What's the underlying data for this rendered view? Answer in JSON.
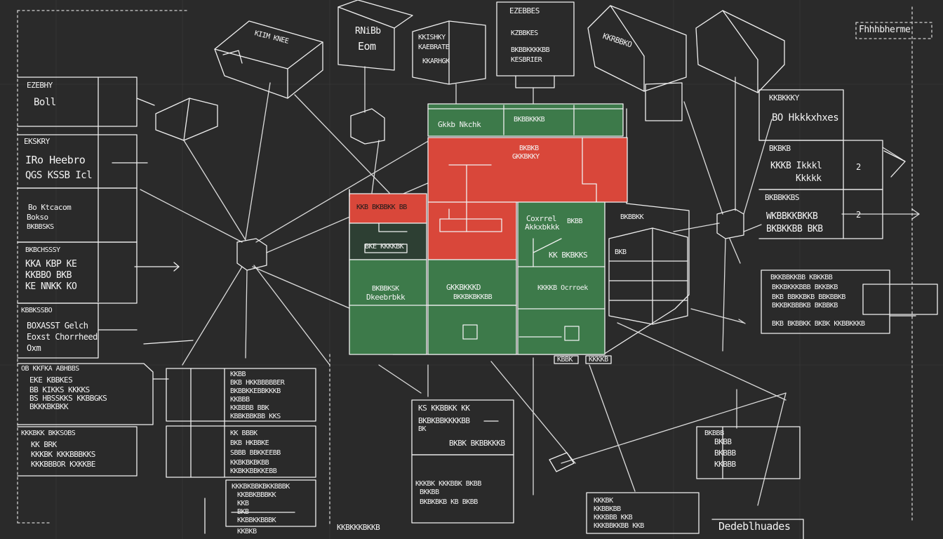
{
  "colors": {
    "board": "#2a2a2a",
    "chalk": "#f2f2f2",
    "red_block": "#d9473a",
    "green_block": "#3d7a4a",
    "dark_block": "#2d3f33"
  },
  "corner": {
    "top_right": "Fhhhbherme",
    "bottom_right": "Dedeblhuades"
  },
  "top_cubes": {
    "cube_1": "KIIM KNEE",
    "cube_2_line1": "RNiBb",
    "cube_2_line2": "Eom",
    "cube_3_line1": "KKISHKY",
    "cube_3_line2": "KAEBRATE",
    "cube_3_line3": "KKARHGK",
    "top_box_line1": "EZEBBES",
    "top_box_line2": "KZBBKES",
    "top_box_line3": "BKBBKKKKBB",
    "top_box_line4": "KESBRIER",
    "cube_5": "KKRBBKO",
    "cube_6": ""
  },
  "left_panel": {
    "r1": "EZEBHY",
    "r1b": "Boll",
    "r2": "EKSKRY",
    "r2b": "IRo Heebro",
    "r2c": "QGS KSSB Icl",
    "r3": "Bo Ktcacom",
    "r3b": "Bokso",
    "r3c": "BKBBSKS",
    "r4": "BKBCHSSSY",
    "r4b": "KKA KBP KE",
    "r4c": "KKBBO BKB",
    "r4d": "KE NNKK KO",
    "r5": "KBBKSSBO",
    "r5b": "BOXASST Gelch",
    "r5c": "Eoxst Chorrheed",
    "r5d": "Oxm"
  },
  "lower_left": {
    "a1": "OB KKFKA ABHBBS",
    "a2": "EKE KBBKES",
    "a3": "BB KIKKS KKKKS",
    "a4": "BS HBSSKKS KKBBGKS",
    "a5": "BKKKBKBKK",
    "b1": "KKKBKK BKKSOBS",
    "b2": "KK BRK",
    "b3": "KKKBK KKKBBBKKS",
    "b4": "KKKBBBOR KXKKBE"
  },
  "center_tables": {
    "t1_l1": "KKBB",
    "t1_l2": "BKB HKKBBBBBER",
    "t1_l3": "BKBBKKEBBKKKB",
    "t1_l4": "KKBBB",
    "t1_l5": "KKBBBB BBK",
    "t1_l6": "KBBKBBKBB KKS",
    "t2_l1": "KK BBBK",
    "t2_l2": "BKB HKBBKE",
    "t2_l3": "SBBB BBKKEEBB",
    "t2_l4": "KKBKBKBKBB",
    "t2_l5": "KKBKKBBKKEBB",
    "t3_l1": "KKKBKBBKBKKBBBK",
    "t3_l2": "KKBBKBBBKK",
    "t3_l3": "KKB",
    "t3_l4": "BKB",
    "t3_l5": "KKBBKKBBBK",
    "t3_l6": "KKBKB"
  },
  "center_block": {
    "green_top": "Gkkb Nkchk",
    "green_top_right": "BKBBKKKB",
    "red_l1": "BKBKB",
    "red_l2": "GKKBKKY",
    "small_red": "KKB BKBBKK BB",
    "dark_label": "BKE KKKKBK",
    "green_l1": "BKBBKSK",
    "green_l2": "Dkeebrbkk",
    "green_c1": "GKKBKKKD",
    "green_c2": "BKKBKBKKBB",
    "green_r1": "Coxrrel",
    "green_r2": "Akkxbkkk",
    "green_r3": "BKBB",
    "green_r4": "KK BKBKKS",
    "green_r5": "KKKKB Ocrroek",
    "cyl_top": "BKBBKK",
    "cyl_label": "BKB",
    "under_tag1": "KBBK",
    "under_tag2": "KKKKB"
  },
  "center_lower": {
    "l1": "KS KKBBKK KK",
    "l2": "BKBKBBKKKKBB",
    "l3": "BK",
    "l4": "BKBK BKBBKKKB",
    "l5": "KKKBK KKKBBK BKBB",
    "l6": "BKKBB",
    "l7": "BKBKBKB KB BKBB",
    "bottom_box1": "KKKBK",
    "bottom_box2": "KKBBKBB",
    "bottom_box3": "KKKBBB KKB",
    "bottom_box4": "KKKBBKKBB KKB"
  },
  "right_panel": {
    "p1": "KKBKKKY",
    "p1b": "BO Hkkkxhxes",
    "p2": "BKBKB",
    "p2b": "KKKB Ikkkl",
    "p2c": "Kkkkk",
    "p2num": "2",
    "p3": "BKBBKKBS",
    "p3b": "WKBBKKBKKB",
    "p3c": "BKBKKBB BKB",
    "p3num": "2",
    "q1": "BKKBBKKBB KBKKBB",
    "q2": "BKKBKKKBBB BKKBKB",
    "q3": "BKB BBKKBKB BBKBBKB",
    "q4": "BKKBKBBBKB BKBBKB",
    "q5": "BKB BKBBKK BKBK KKBBKKKB",
    "s1": "BKBBB",
    "s2": "BKBB",
    "s3": "BKBBB",
    "s4": "KKBBB"
  },
  "bottom_left_note": "KKBKKKBKKB"
}
